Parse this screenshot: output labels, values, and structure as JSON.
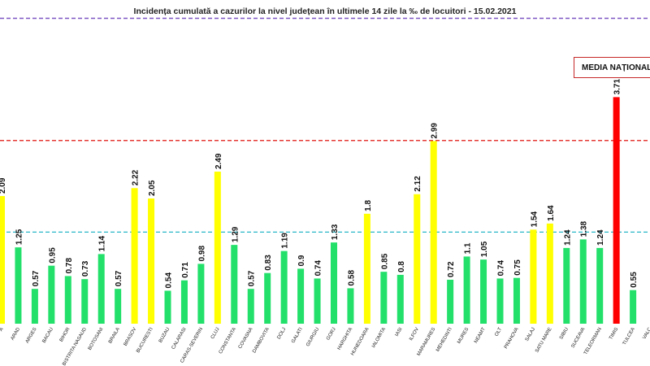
{
  "chart_data": {
    "type": "bar",
    "title": "Incidența cumulată a cazurilor la nivel județean în ultimele 14 zile la ‰ de locuitori - 15.02.2021",
    "categories": [
      "ALBA",
      "ARAD",
      "ARGES",
      "BACAU",
      "BIHOR",
      "BISTRITA NASAUD",
      "BOTOSANI",
      "BRAILA",
      "BRASOV",
      "BUCURESTI",
      "BUZAU",
      "CALARASI",
      "CARAS-SEVERIN",
      "CLUJ",
      "CONSTANTA",
      "COVASNA",
      "DAMBOVITA",
      "DOLJ",
      "GALATI",
      "GIURGIU",
      "GORJ",
      "HARGHITA",
      "HUNEDOARA",
      "IALOMITA",
      "IASI",
      "ILFOV",
      "MARAMURES",
      "MEHEDINTI",
      "MURES",
      "NEAMT",
      "OLT",
      "PRAHOVA",
      "SALAJ",
      "SATU MARE",
      "SIBIU",
      "SUCEAVA",
      "TELEORMAN",
      "TIMIS",
      "TULCEA",
      "VALCEA"
    ],
    "visible_categories": [
      "A",
      "ARAD",
      "ARGES",
      "BACAU",
      "BIHOR",
      "BISTRITA NASAUD",
      "BOTOSANI",
      "BRAILA",
      "BRASOV",
      "BUCURESTI",
      "BUZAU",
      "CALARASI",
      "CARAS-SEVERIN",
      "CLUJ",
      "CONSTANTA",
      "COVASNA",
      "DAMBOVITA",
      "DOLJ",
      "GALATI",
      "GIURGIU",
      "GORJ",
      "HARGHITA",
      "HUNEDOARA",
      "IALOMITA",
      "IASI",
      "ILFOV",
      "MARAMURES",
      "MEHEDINTI",
      "MURES",
      "NEAMT",
      "OLT",
      "PRAHOVA",
      "SALAJ",
      "SATU MARE",
      "SIBIU",
      "SUCEAVA",
      "TELEORMAN",
      "TIMIS",
      "TULCEA",
      "VALC"
    ],
    "values": [
      2.09,
      1.25,
      0.57,
      0.95,
      0.78,
      0.73,
      1.14,
      0.57,
      2.22,
      2.05,
      0.54,
      0.71,
      0.98,
      2.49,
      1.29,
      0.57,
      0.83,
      1.19,
      0.9,
      0.74,
      1.33,
      0.58,
      1.8,
      0.85,
      0.8,
      2.12,
      2.99,
      0.72,
      1.1,
      1.05,
      0.74,
      0.75,
      1.54,
      1.64,
      1.24,
      1.38,
      1.24,
      3.71,
      0.55,
      null
    ],
    "value_labels": [
      "2.09",
      "1.25",
      "0.57",
      "0.95",
      "0.78",
      "0.73",
      "1.14",
      "0.57",
      "2.22",
      "2.05",
      "0.54",
      "0.71",
      "0.98",
      "2.49",
      "1.29",
      "0.57",
      "0.83",
      "1.19",
      "0.9",
      "0.74",
      "1.33",
      "0.58",
      "1.8",
      "0.85",
      "0.8",
      "2.12",
      "2.99",
      "0.72",
      "1.1",
      "1.05",
      "0.74",
      "0.75",
      "1.54",
      "1.64",
      "1.24",
      "1.38",
      "1.24",
      "3.71",
      "0.55",
      ""
    ],
    "bar_colors": [
      "#ffff00",
      "#22e06a",
      "#22e06a",
      "#22e06a",
      "#22e06a",
      "#22e06a",
      "#22e06a",
      "#22e06a",
      "#ffff00",
      "#ffff00",
      "#22e06a",
      "#22e06a",
      "#22e06a",
      "#ffff00",
      "#22e06a",
      "#22e06a",
      "#22e06a",
      "#22e06a",
      "#22e06a",
      "#22e06a",
      "#22e06a",
      "#22e06a",
      "#ffff00",
      "#22e06a",
      "#22e06a",
      "#ffff00",
      "#ffff00",
      "#22e06a",
      "#22e06a",
      "#22e06a",
      "#22e06a",
      "#22e06a",
      "#ffff00",
      "#ffff00",
      "#22e06a",
      "#22e06a",
      "#22e06a",
      "#ff0000",
      "#22e06a",
      "#22e06a"
    ],
    "reference_lines": [
      {
        "value": 1.5,
        "color": "#29b6c8"
      },
      {
        "value": 3.0,
        "color": "#e53935"
      },
      {
        "value": 5.0,
        "color": "#7e57c2"
      }
    ],
    "ylim": [
      0,
      5.3
    ],
    "grid": false,
    "legend": {
      "label": "MEDIA NAȚIONAL",
      "placement": "top-right"
    }
  }
}
